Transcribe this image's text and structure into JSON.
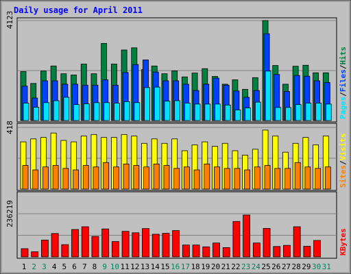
{
  "colors": {
    "background": "#C0C0C0",
    "frame": "#808080",
    "plot": "#C0C0C0",
    "hits": "#008040",
    "files": "#0040FF",
    "pages": "#00E0FF",
    "visits": "#FFFF00",
    "sites": "#FF8000",
    "kbytes": "#FF0000",
    "title": "#0000FF",
    "weekend_day": "#00805C",
    "weekday": "#000000"
  },
  "chart_data": [
    {
      "type": "bar",
      "title": "Daily usage for April 2011",
      "y_max_label": "4123",
      "y_max": 4123,
      "legend": [
        "Pages",
        "Files",
        "Hits"
      ],
      "categories": [
        "1",
        "2",
        "3",
        "4",
        "5",
        "6",
        "7",
        "8",
        "9",
        "10",
        "11",
        "12",
        "13",
        "14",
        "15",
        "16",
        "17",
        "18",
        "19",
        "20",
        "21",
        "22",
        "23",
        "24",
        "25",
        "26",
        "27",
        "28",
        "29",
        "30",
        "31"
      ],
      "series": [
        {
          "name": "Hits",
          "values": [
            2020,
            1530,
            2040,
            2250,
            1930,
            1880,
            2330,
            1930,
            3180,
            2330,
            2910,
            3000,
            2100,
            2250,
            1930,
            2050,
            1800,
            1960,
            2140,
            1820,
            1500,
            1680,
            1290,
            1770,
            4123,
            2270,
            1500,
            2240,
            2280,
            1970,
            1970
          ]
        },
        {
          "name": "Files",
          "values": [
            1420,
            930,
            1640,
            1640,
            1500,
            1500,
            1460,
            1460,
            1680,
            1460,
            1980,
            2310,
            2500,
            2000,
            1640,
            1640,
            1500,
            1240,
            1500,
            1750,
            1460,
            1220,
            960,
            1240,
            3580,
            1900,
            1200,
            1860,
            1830,
            1640,
            1570
          ]
        },
        {
          "name": "Pages",
          "values": [
            720,
            550,
            740,
            820,
            960,
            660,
            690,
            740,
            740,
            720,
            780,
            740,
            1360,
            1380,
            800,
            820,
            720,
            680,
            680,
            680,
            640,
            440,
            520,
            760,
            2040,
            540,
            540,
            660,
            720,
            720,
            680
          ]
        }
      ]
    },
    {
      "type": "bar",
      "y_max_label": "418",
      "y_max": 418,
      "legend": [
        "Sites",
        "Visits"
      ],
      "categories": [
        "1",
        "2",
        "3",
        "4",
        "5",
        "6",
        "7",
        "8",
        "9",
        "10",
        "11",
        "12",
        "13",
        "14",
        "15",
        "16",
        "17",
        "18",
        "19",
        "20",
        "21",
        "22",
        "23",
        "24",
        "25",
        "26",
        "27",
        "28",
        "29",
        "30",
        "31"
      ],
      "series": [
        {
          "name": "Visits",
          "values": [
            320,
            340,
            350,
            380,
            330,
            320,
            360,
            370,
            350,
            350,
            370,
            360,
            310,
            340,
            310,
            340,
            260,
            300,
            320,
            290,
            310,
            260,
            230,
            270,
            400,
            360,
            250,
            310,
            350,
            300,
            360
          ]
        },
        {
          "name": "Sites",
          "values": [
            160,
            130,
            150,
            160,
            140,
            130,
            160,
            150,
            180,
            150,
            170,
            160,
            150,
            170,
            160,
            140,
            150,
            130,
            170,
            150,
            140,
            140,
            130,
            150,
            160,
            140,
            140,
            180,
            150,
            140,
            150
          ]
        }
      ]
    },
    {
      "type": "bar",
      "y_max_label": "236219",
      "y_max": 236219,
      "legend": [
        "KBytes"
      ],
      "categories": [
        "1",
        "2",
        "3",
        "4",
        "5",
        "6",
        "7",
        "8",
        "9",
        "10",
        "11",
        "12",
        "13",
        "14",
        "15",
        "16",
        "17",
        "18",
        "19",
        "20",
        "21",
        "22",
        "23",
        "24",
        "25",
        "26",
        "27",
        "28",
        "29",
        "30",
        "31"
      ],
      "series": [
        {
          "name": "KBytes",
          "values": [
            45000,
            28000,
            92000,
            128000,
            67000,
            150000,
            165000,
            112000,
            153000,
            84000,
            140000,
            132000,
            155000,
            124000,
            129000,
            144000,
            65000,
            65000,
            55000,
            76000,
            51000,
            194000,
            229000,
            76000,
            156000,
            57000,
            63000,
            165000,
            58000,
            90000,
            0
          ]
        }
      ]
    }
  ],
  "x_axis": {
    "labels": [
      "1",
      "2",
      "3",
      "4",
      "5",
      "6",
      "7",
      "8",
      "9",
      "10",
      "11",
      "12",
      "13",
      "14",
      "15",
      "16",
      "17",
      "18",
      "19",
      "20",
      "21",
      "22",
      "23",
      "24",
      "25",
      "26",
      "27",
      "28",
      "29",
      "30",
      "31"
    ],
    "weekend": [
      2,
      3,
      9,
      10,
      16,
      17,
      23,
      24,
      30,
      31
    ]
  }
}
